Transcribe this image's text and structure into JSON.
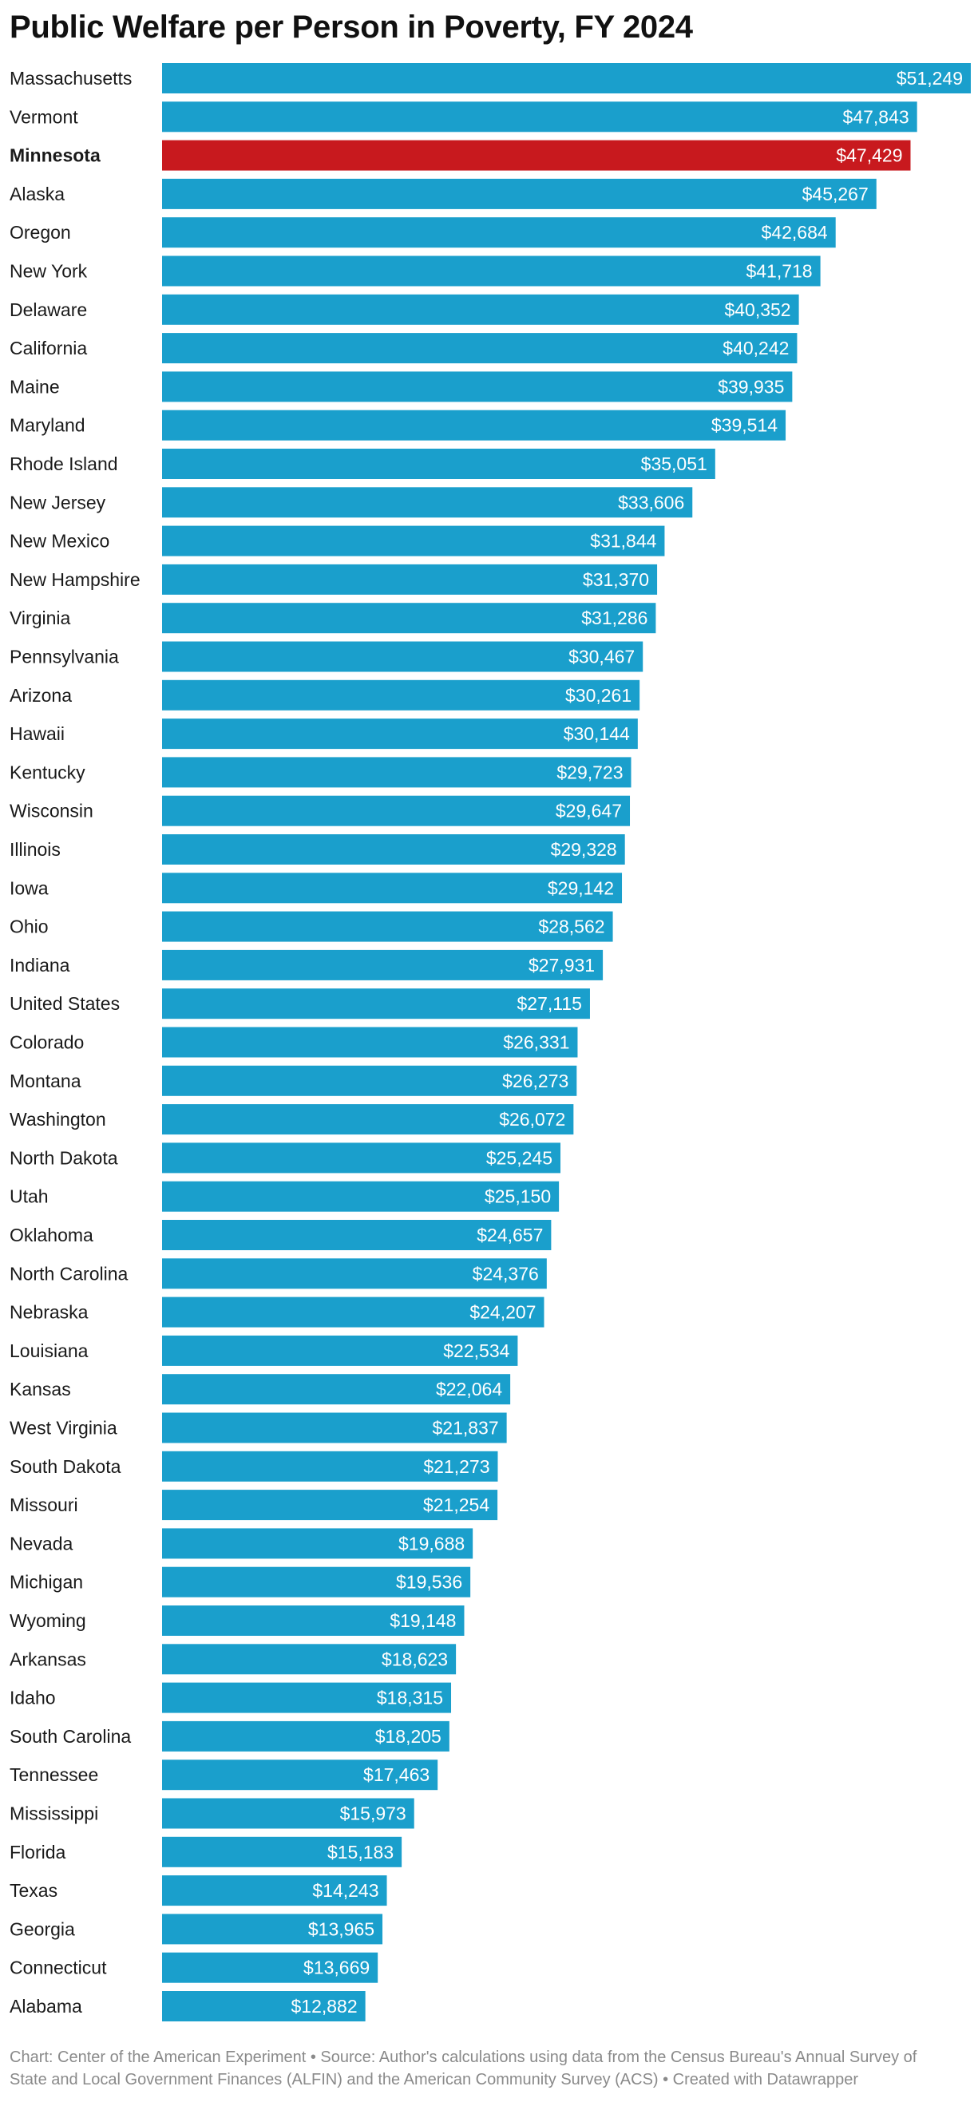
{
  "chart_data": {
    "type": "bar",
    "orientation": "horizontal",
    "title": "Public Welfare per Person in Poverty, FY 2024",
    "value_prefix": "$",
    "colors": {
      "default": "#1a9fcc",
      "highlight": "#c8191e"
    },
    "highlight": "Minnesota",
    "categories": [
      "Massachusetts",
      "Vermont",
      "Minnesota",
      "Alaska",
      "Oregon",
      "New York",
      "Delaware",
      "California",
      "Maine",
      "Maryland",
      "Rhode Island",
      "New Jersey",
      "New Mexico",
      "New Hampshire",
      "Virginia",
      "Pennsylvania",
      "Arizona",
      "Hawaii",
      "Kentucky",
      "Wisconsin",
      "Illinois",
      "Iowa",
      "Ohio",
      "Indiana",
      "United States",
      "Colorado",
      "Montana",
      "Washington",
      "North Dakota",
      "Utah",
      "Oklahoma",
      "North Carolina",
      "Nebraska",
      "Louisiana",
      "Kansas",
      "West Virginia",
      "South Dakota",
      "Missouri",
      "Nevada",
      "Michigan",
      "Wyoming",
      "Arkansas",
      "Idaho",
      "South Carolina",
      "Tennessee",
      "Mississippi",
      "Florida",
      "Texas",
      "Georgia",
      "Connecticut",
      "Alabama"
    ],
    "values": [
      51249,
      47843,
      47429,
      45267,
      42684,
      41718,
      40352,
      40242,
      39935,
      39514,
      35051,
      33606,
      31844,
      31370,
      31286,
      30467,
      30261,
      30144,
      29723,
      29647,
      29328,
      29142,
      28562,
      27931,
      27115,
      26331,
      26273,
      26072,
      25245,
      25150,
      24657,
      24376,
      24207,
      22534,
      22064,
      21837,
      21273,
      21254,
      19688,
      19536,
      19148,
      18623,
      18315,
      18205,
      17463,
      15973,
      15183,
      14243,
      13965,
      13669,
      12882
    ]
  },
  "footer": "Chart: Center of the American Experiment • Source: Author's calculations using data from the Census Bureau's Annual Survey of State and Local Government Finances (ALFIN) and the American Community Survey (ACS) • Created with Datawrapper"
}
